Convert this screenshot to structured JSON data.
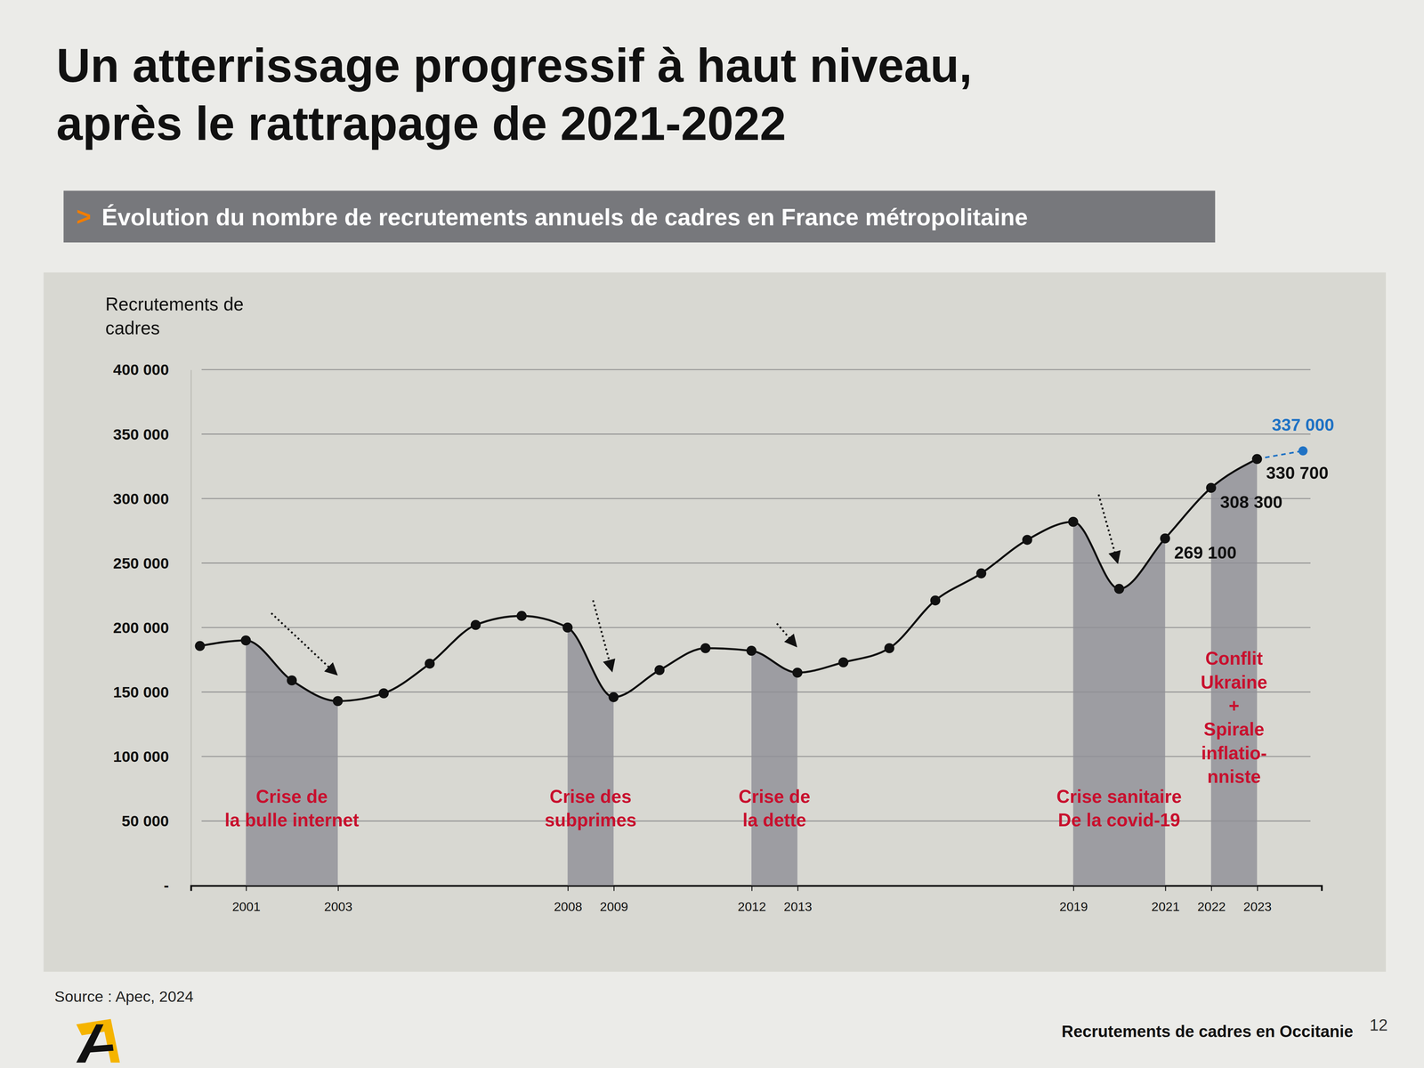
{
  "chart_data": {
    "type": "line",
    "title": "Un atterrissage progressif à haut niveau, après le rattrapage de 2021-2022",
    "subtitle_prefix": ">",
    "subtitle": "Évolution du nombre de recrutements annuels de cadres en France métropolitaine",
    "y_label": "Recrutements de cadres",
    "source": "Source : Apec, 2024",
    "footer": "Recrutements de cadres en Occitanie",
    "page": 12,
    "x": [
      2000,
      2001,
      2002,
      2003,
      2004,
      2005,
      2006,
      2007,
      2008,
      2009,
      2010,
      2011,
      2012,
      2013,
      2014,
      2015,
      2016,
      2017,
      2018,
      2019,
      2020,
      2021,
      2022,
      2023,
      2024
    ],
    "xlim": [
      1999.8,
      2024.4
    ],
    "xticks": [
      2001,
      2003,
      2008,
      2009,
      2012,
      2013,
      2019,
      2021,
      2022,
      2023
    ],
    "ylim": [
      0,
      400000
    ],
    "yticks": [
      {
        "value": 0,
        "label": "-"
      },
      {
        "value": 50000,
        "label": "50 000"
      },
      {
        "value": 100000,
        "label": "100 000"
      },
      {
        "value": 150000,
        "label": "150 000"
      },
      {
        "value": 200000,
        "label": "200 000"
      },
      {
        "value": 250000,
        "label": "250 000"
      },
      {
        "value": 300000,
        "label": "300 000"
      },
      {
        "value": 350000,
        "label": "350 000"
      },
      {
        "value": 400000,
        "label": "400 000"
      }
    ],
    "grid": true,
    "data_labels": true,
    "series": [
      {
        "color": "#111111",
        "marker": "circle",
        "line_style": "solid",
        "values": [
          185700,
          190000,
          159000,
          143000,
          149000,
          172000,
          202000,
          209000,
          200000,
          146000,
          167000,
          184000,
          182000,
          165000,
          173000,
          184000,
          221000,
          242000,
          268000,
          282000,
          230000,
          269100,
          308300,
          330700,
          null
        ],
        "value_labels": [
          null,
          null,
          null,
          null,
          null,
          null,
          null,
          null,
          null,
          null,
          null,
          null,
          null,
          null,
          null,
          null,
          null,
          null,
          null,
          null,
          null,
          "269 100",
          "308 300",
          "330 700",
          null
        ]
      },
      {
        "color": "#1f72c4",
        "marker": "circle",
        "line_style": "dashed",
        "values": [
          null,
          null,
          null,
          null,
          null,
          null,
          null,
          null,
          null,
          null,
          null,
          null,
          null,
          null,
          null,
          null,
          null,
          null,
          null,
          null,
          null,
          null,
          null,
          330700,
          337000
        ],
        "value_labels": [
          null,
          null,
          null,
          null,
          null,
          null,
          null,
          null,
          null,
          null,
          null,
          null,
          null,
          null,
          null,
          null,
          null,
          null,
          null,
          null,
          null,
          null,
          null,
          null,
          "337 000"
        ]
      }
    ],
    "bands": [
      {
        "start": 2001,
        "end": 2003,
        "label": [
          "Crise de",
          "la bulle internet"
        ]
      },
      {
        "start": 2008,
        "end": 2009,
        "label": [
          "Crise des",
          "subprimes"
        ]
      },
      {
        "start": 2012,
        "end": 2013,
        "label": [
          "Crise de",
          "la dette"
        ]
      },
      {
        "start": 2019,
        "end": 2021,
        "label": [
          "Crise sanitaire",
          "De la covid-19"
        ]
      },
      {
        "start": 2022,
        "end": 2023,
        "label": [
          "Conflit",
          "Ukraine",
          "+",
          "Spirale",
          "inflatio-",
          "nniste"
        ]
      }
    ]
  }
}
